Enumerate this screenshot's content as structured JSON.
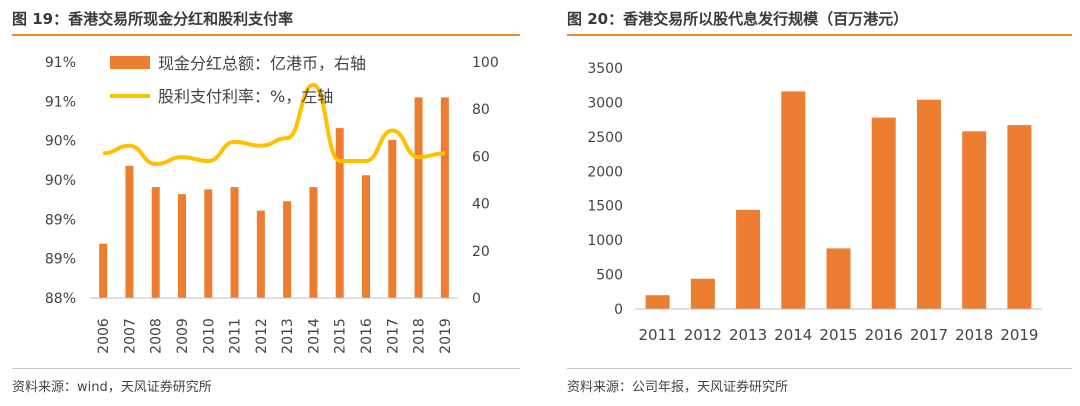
{
  "left": {
    "title": "图 19：香港交易所现金分红和股利支付率",
    "source": "资料来源：wind，天风证券研究所",
    "chart_data": {
      "type": "bar+line",
      "categories": [
        "2006",
        "2007",
        "2008",
        "2009",
        "2010",
        "2011",
        "2012",
        "2013",
        "2014",
        "2015",
        "2016",
        "2017",
        "2018",
        "2019"
      ],
      "series": [
        {
          "name": "现金分红总额：亿港币，右轴",
          "type": "bar",
          "axis": "right",
          "color": "#ed7d31",
          "values": [
            23,
            56,
            47,
            44,
            46,
            47,
            37,
            41,
            47,
            72,
            52,
            67,
            85,
            85
          ]
        },
        {
          "name": "股利支付利率：%，左轴",
          "type": "line",
          "axis": "left",
          "color": "#ffc000",
          "values": [
            89.9,
            90.0,
            89.76,
            89.85,
            89.8,
            90.05,
            90.0,
            90.1,
            90.8,
            89.8,
            89.8,
            90.2,
            89.85,
            89.9
          ]
        }
      ],
      "y_left_ticks": [
        "91%",
        "91%",
        "90%",
        "90%",
        "89%",
        "89%",
        "88%"
      ],
      "y_left_range": [
        88,
        91.1
      ],
      "y_right_ticks": [
        "100",
        "80",
        "60",
        "40",
        "20",
        "0"
      ],
      "y_right_range": [
        0,
        100
      ],
      "legend": "top-left"
    }
  },
  "right": {
    "title": "图 20：香港交易所以股代息发行规模（百万港元）",
    "source": "资料来源：公司年报，天风证券研究所",
    "chart_data": {
      "type": "bar",
      "categories": [
        "2011",
        "2012",
        "2013",
        "2014",
        "2015",
        "2016",
        "2017",
        "2018",
        "2019"
      ],
      "values": [
        200,
        440,
        1440,
        3160,
        880,
        2780,
        3040,
        2580,
        2670
      ],
      "ylim": [
        0,
        3500
      ],
      "y_ticks": [
        "3500",
        "3000",
        "2500",
        "2000",
        "1500",
        "1000",
        "500",
        "0"
      ],
      "color": "#ed7d31"
    }
  }
}
